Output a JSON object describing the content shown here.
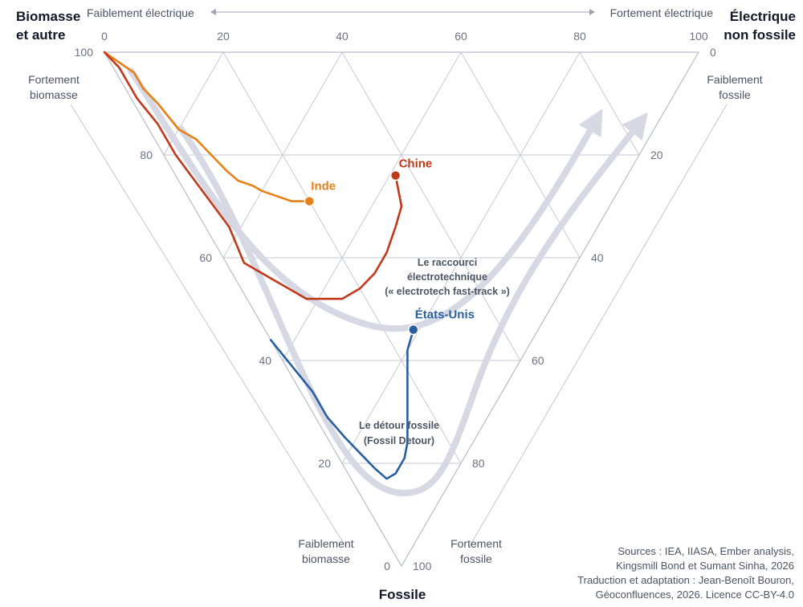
{
  "chart_data": {
    "type": "ternary",
    "axes": {
      "top": {
        "label": "Électrique non fossile",
        "dir_low": "Faiblement électrique",
        "dir_high": "Fortement électrique",
        "ticks": [
          0,
          20,
          40,
          60,
          80,
          100
        ]
      },
      "left": {
        "label": "Biomasse et autre",
        "dir_high": "Fortement biomasse",
        "dir_low": "Faiblement biomasse",
        "ticks": [
          100,
          80,
          60,
          40,
          20,
          0
        ]
      },
      "right": {
        "label": "Fossile",
        "dir_low": "Faiblement fossile",
        "dir_high": "Fortement fossile",
        "ticks": [
          0,
          20,
          40,
          60,
          80,
          100
        ]
      }
    },
    "corner_labels": {
      "biomass_line1": "Biomasse",
      "biomass_line2": "et autre",
      "electric_line1": "Électrique",
      "electric_line2": "non fossile",
      "fossil": "Fossile"
    },
    "direction_labels": {
      "weak_electric": "Faiblement électrique",
      "strong_electric": "Fortement électrique",
      "strong_biomass_1": "Fortement",
      "strong_biomass_2": "biomasse",
      "weak_fossil_1": "Faiblement",
      "weak_fossil_2": "fossile",
      "weak_biomass_1": "Faiblement",
      "weak_biomass_2": "biomasse",
      "strong_fossil_1": "Fortement",
      "strong_fossil_2": "fossile"
    },
    "annotations": {
      "fast_track_1": "Le raccourci",
      "fast_track_2": "électrotechnique",
      "fast_track_3": "(« electrotech fast-track »)",
      "detour_1": "Le détour fossile",
      "detour_2": "(Fossil Detour)"
    },
    "series": [
      {
        "name": "Inde",
        "color": "#e8801a",
        "points": [
          [
            100,
            0,
            0
          ],
          [
            93,
            3,
            4
          ],
          [
            90,
            3,
            7
          ],
          [
            86,
            4,
            10
          ],
          [
            80,
            5,
            15
          ],
          [
            76,
            7,
            17
          ],
          [
            72,
            8,
            20
          ],
          [
            68,
            9,
            23
          ],
          [
            65,
            10,
            25
          ],
          [
            62,
            12,
            26
          ],
          [
            60,
            13,
            27
          ],
          [
            57,
            15,
            28
          ],
          [
            54,
            17,
            29
          ],
          [
            52,
            19,
            29
          ],
          [
            51,
            20,
            29
          ]
        ]
      },
      {
        "name": "Chine",
        "color": "#c0391b",
        "points": [
          [
            100,
            0,
            0
          ],
          [
            96,
            1,
            3
          ],
          [
            90,
            1,
            9
          ],
          [
            84,
            2,
            14
          ],
          [
            78,
            2,
            20
          ],
          [
            70,
            3,
            27
          ],
          [
            62,
            4,
            34
          ],
          [
            56,
            3,
            41
          ],
          [
            50,
            6,
            44
          ],
          [
            46,
            8,
            46
          ],
          [
            42,
            10,
            48
          ],
          [
            40,
            12,
            48
          ],
          [
            38,
            14,
            48
          ],
          [
            36,
            16,
            48
          ],
          [
            34,
            20,
            46
          ],
          [
            33,
            24,
            43
          ],
          [
            33,
            28,
            39
          ],
          [
            34,
            32,
            34
          ],
          [
            35,
            35,
            30
          ],
          [
            37,
            36,
            27
          ],
          [
            39,
            37,
            24
          ]
        ]
      },
      {
        "name": "États-Unis",
        "color": "#2a5f9e",
        "points": [
          [
            44,
            0,
            56
          ],
          [
            38,
            1,
            61
          ],
          [
            32,
            2,
            66
          ],
          [
            27,
            2,
            71
          ],
          [
            22,
            3,
            75
          ],
          [
            18,
            4,
            78
          ],
          [
            14,
            5,
            81
          ],
          [
            11,
            6,
            83
          ],
          [
            10,
            8,
            82
          ],
          [
            10,
            11,
            79
          ],
          [
            11,
            13,
            76
          ],
          [
            13,
            15,
            72
          ],
          [
            16,
            18,
            66
          ],
          [
            18,
            20,
            62
          ],
          [
            20,
            22,
            58
          ],
          [
            21,
            25,
            54
          ]
        ]
      }
    ],
    "sources": [
      "Sources : IEA, IIASA, Ember analysis,",
      "Kingsmill Bond et Sumant Sinha, 2026",
      "Traduction et adaptation : Jean-Benoît Bouron,",
      "Géoconfluences, 2026. Licence CC-BY-4.0"
    ]
  }
}
